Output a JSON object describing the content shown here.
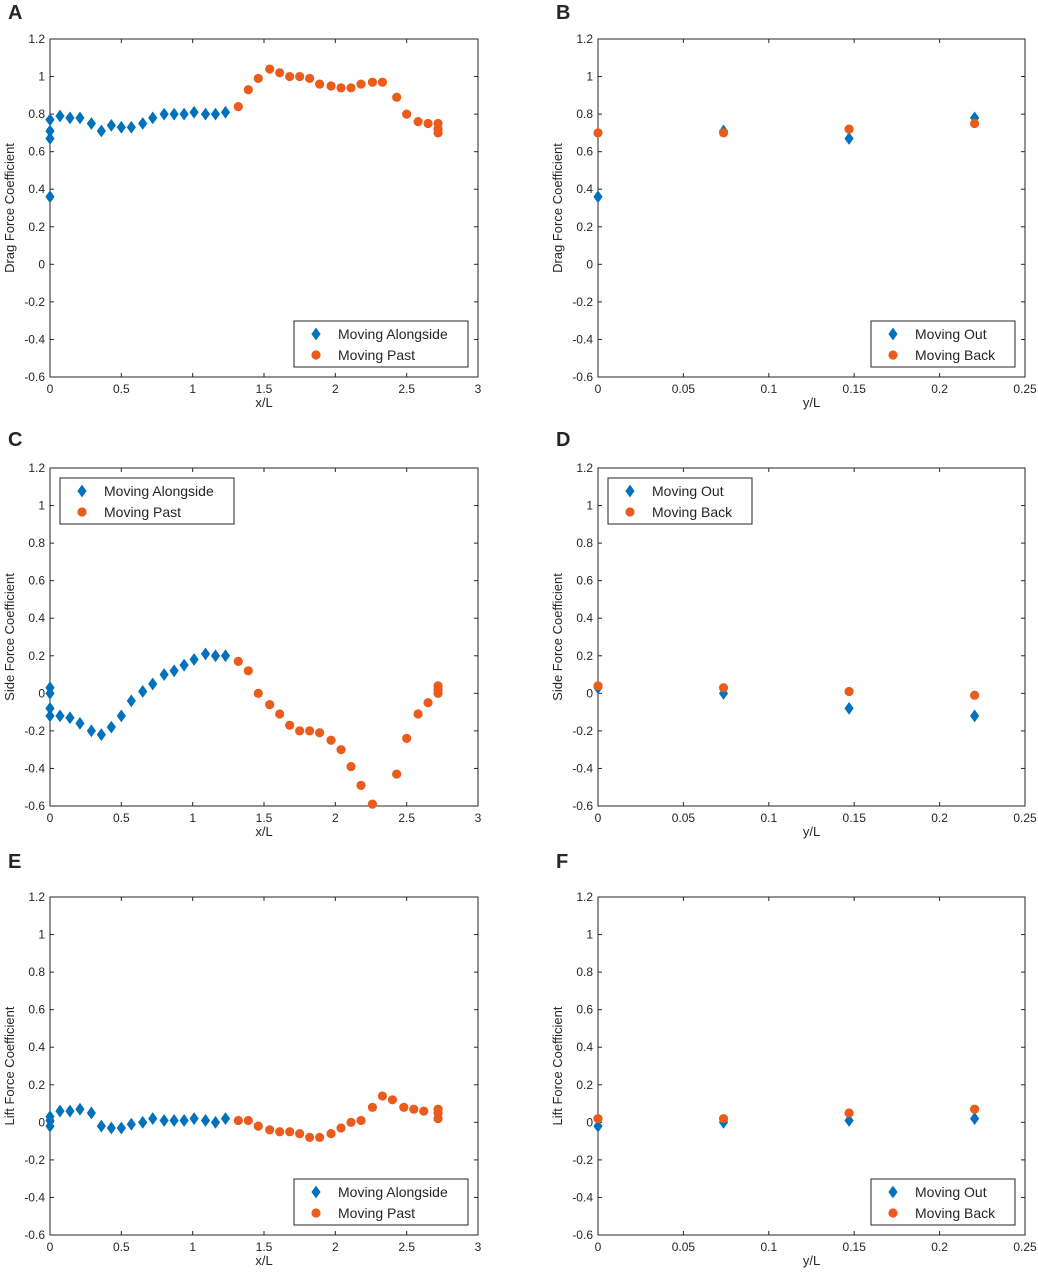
{
  "colors": {
    "series_a": "#0072BD",
    "series_b": "#EA5B1C",
    "axis": "#262626"
  },
  "chart_data": [
    {
      "panel": "A",
      "type": "scatter",
      "xlabel": "x/L",
      "ylabel": "Drag Force Coefficient",
      "xlim": [
        0,
        3
      ],
      "ylim": [
        -0.6,
        1.2
      ],
      "xticks": [
        0,
        0.5,
        1,
        1.5,
        2,
        2.5,
        3
      ],
      "xtick_labels": [
        "0",
        "0.5",
        "1",
        "1.5",
        "2",
        "2.5",
        "3"
      ],
      "yticks": [
        -0.6,
        -0.4,
        -0.2,
        0,
        0.2,
        0.4,
        0.6,
        0.8,
        1,
        1.2
      ],
      "ytick_labels": [
        "-0.6",
        "-0.4",
        "-0.2",
        "0",
        "0.2",
        "0.4",
        "0.6",
        "0.8",
        "1",
        "1.2"
      ],
      "legend": "bottom-right",
      "series": [
        {
          "name": "Moving Alongside",
          "marker": "diamond",
          "x": [
            0,
            0,
            0,
            0,
            0.07,
            0.14,
            0.21,
            0.29,
            0.36,
            0.43,
            0.5,
            0.57,
            0.65,
            0.72,
            0.8,
            0.87,
            0.94,
            1.01,
            1.09,
            1.16,
            1.23
          ],
          "y": [
            0.36,
            0.67,
            0.71,
            0.77,
            0.79,
            0.78,
            0.78,
            0.75,
            0.71,
            0.74,
            0.73,
            0.73,
            0.75,
            0.78,
            0.8,
            0.8,
            0.8,
            0.81,
            0.8,
            0.8,
            0.81
          ]
        },
        {
          "name": "Moving Past",
          "marker": "circle",
          "x": [
            1.32,
            1.39,
            1.46,
            1.54,
            1.61,
            1.68,
            1.75,
            1.82,
            1.89,
            1.97,
            2.04,
            2.11,
            2.18,
            2.26,
            2.33,
            2.43,
            2.5,
            2.58,
            2.65,
            2.72,
            2.72,
            2.72
          ],
          "y": [
            0.84,
            0.93,
            0.99,
            1.04,
            1.02,
            1.0,
            1.0,
            0.99,
            0.96,
            0.95,
            0.94,
            0.94,
            0.96,
            0.97,
            0.97,
            0.89,
            0.8,
            0.76,
            0.75,
            0.7,
            0.72,
            0.75
          ]
        }
      ]
    },
    {
      "panel": "B",
      "type": "scatter",
      "xlabel": "y/L",
      "ylabel": "Drag Force Coefficient",
      "xlim": [
        0,
        0.25
      ],
      "ylim": [
        -0.6,
        1.2
      ],
      "xticks": [
        0,
        0.05,
        0.1,
        0.15,
        0.2,
        0.25
      ],
      "xtick_labels": [
        "0",
        "0.05",
        "0.1",
        "0.15",
        "0.2",
        "0.25"
      ],
      "yticks": [
        -0.6,
        -0.4,
        -0.2,
        0,
        0.2,
        0.4,
        0.6,
        0.8,
        1,
        1.2
      ],
      "ytick_labels": [
        "-0.6",
        "-0.4",
        "-0.2",
        "0",
        "0.2",
        "0.4",
        "0.6",
        "0.8",
        "1",
        "1.2"
      ],
      "legend": "bottom-right",
      "series": [
        {
          "name": "Moving Out",
          "marker": "diamond",
          "x": [
            0,
            0.0735,
            0.147,
            0.2205
          ],
          "y": [
            0.36,
            0.71,
            0.67,
            0.78
          ]
        },
        {
          "name": "Moving Back",
          "marker": "circle",
          "x": [
            0,
            0.0735,
            0.147,
            0.2205
          ],
          "y": [
            0.7,
            0.7,
            0.72,
            0.75
          ]
        }
      ]
    },
    {
      "panel": "C",
      "type": "scatter",
      "xlabel": "x/L",
      "ylabel": "Side Force Coefficient",
      "xlim": [
        0,
        3
      ],
      "ylim": [
        -0.6,
        1.2
      ],
      "xticks": [
        0,
        0.5,
        1,
        1.5,
        2,
        2.5,
        3
      ],
      "xtick_labels": [
        "0",
        "0.5",
        "1",
        "1.5",
        "2",
        "2.5",
        "3"
      ],
      "yticks": [
        -0.6,
        -0.4,
        -0.2,
        0,
        0.2,
        0.4,
        0.6,
        0.8,
        1,
        1.2
      ],
      "ytick_labels": [
        "-0.6",
        "-0.4",
        "-0.2",
        "0",
        "0.2",
        "0.4",
        "0.6",
        "0.8",
        "1",
        "1.2"
      ],
      "legend": "top-left",
      "series": [
        {
          "name": "Moving Alongside",
          "marker": "diamond",
          "x": [
            0,
            0,
            0,
            0,
            0.07,
            0.14,
            0.21,
            0.29,
            0.36,
            0.43,
            0.5,
            0.57,
            0.65,
            0.72,
            0.8,
            0.87,
            0.94,
            1.01,
            1.09,
            1.16,
            1.23
          ],
          "y": [
            -0.12,
            -0.08,
            0.0,
            0.03,
            -0.12,
            -0.13,
            -0.16,
            -0.2,
            -0.22,
            -0.18,
            -0.12,
            -0.04,
            0.01,
            0.05,
            0.1,
            0.12,
            0.15,
            0.18,
            0.21,
            0.2,
            0.2
          ]
        },
        {
          "name": "Moving Past",
          "marker": "circle",
          "x": [
            1.32,
            1.39,
            1.46,
            1.54,
            1.61,
            1.68,
            1.75,
            1.82,
            1.89,
            1.97,
            2.04,
            2.11,
            2.18,
            2.26,
            2.43,
            2.5,
            2.58,
            2.65,
            2.72,
            2.72,
            2.72
          ],
          "y": [
            0.17,
            0.12,
            0.0,
            -0.06,
            -0.11,
            -0.17,
            -0.2,
            -0.2,
            -0.21,
            -0.25,
            -0.3,
            -0.39,
            -0.49,
            -0.59,
            -0.43,
            -0.24,
            -0.11,
            -0.05,
            0.0,
            0.02,
            0.04
          ]
        }
      ]
    },
    {
      "panel": "D",
      "type": "scatter",
      "xlabel": "y/L",
      "ylabel": "Side Force Coefficient",
      "xlim": [
        0,
        0.25
      ],
      "ylim": [
        -0.6,
        1.2
      ],
      "xticks": [
        0,
        0.05,
        0.1,
        0.15,
        0.2,
        0.25
      ],
      "xtick_labels": [
        "0",
        "0.05",
        "0.1",
        "0.15",
        "0.2",
        "0.25"
      ],
      "yticks": [
        -0.6,
        -0.4,
        -0.2,
        0,
        0.2,
        0.4,
        0.6,
        0.8,
        1,
        1.2
      ],
      "ytick_labels": [
        "-0.6",
        "-0.4",
        "-0.2",
        "0",
        "0.2",
        "0.4",
        "0.6",
        "0.8",
        "1",
        "1.2"
      ],
      "legend": "top-left",
      "series": [
        {
          "name": "Moving Out",
          "marker": "diamond",
          "x": [
            0,
            0.0735,
            0.147,
            0.2205
          ],
          "y": [
            0.03,
            0.0,
            -0.08,
            -0.12
          ]
        },
        {
          "name": "Moving Back",
          "marker": "circle",
          "x": [
            0,
            0.0735,
            0.147,
            0.2205
          ],
          "y": [
            0.04,
            0.03,
            0.01,
            -0.01
          ]
        }
      ]
    },
    {
      "panel": "E",
      "type": "scatter",
      "xlabel": "x/L",
      "ylabel": "Lift Force Coefficient",
      "xlim": [
        0,
        3
      ],
      "ylim": [
        -0.6,
        1.2
      ],
      "xticks": [
        0,
        0.5,
        1,
        1.5,
        2,
        2.5,
        3
      ],
      "xtick_labels": [
        "0",
        "0.5",
        "1",
        "1.5",
        "2",
        "2.5",
        "3"
      ],
      "yticks": [
        -0.6,
        -0.4,
        -0.2,
        0,
        0.2,
        0.4,
        0.6,
        0.8,
        1,
        1.2
      ],
      "ytick_labels": [
        "-0.6",
        "-0.4",
        "-0.2",
        "0",
        "0.2",
        "0.4",
        "0.6",
        "0.8",
        "1",
        "1.2"
      ],
      "legend": "bottom-right",
      "series": [
        {
          "name": "Moving Alongside",
          "marker": "diamond",
          "x": [
            0,
            0,
            0,
            0.07,
            0.14,
            0.21,
            0.29,
            0.36,
            0.43,
            0.5,
            0.57,
            0.65,
            0.72,
            0.8,
            0.87,
            0.94,
            1.01,
            1.09,
            1.16,
            1.23
          ],
          "y": [
            -0.02,
            0.01,
            0.03,
            0.06,
            0.06,
            0.07,
            0.05,
            -0.02,
            -0.03,
            -0.03,
            -0.01,
            0.0,
            0.02,
            0.01,
            0.01,
            0.01,
            0.02,
            0.01,
            0.0,
            0.02
          ]
        },
        {
          "name": "Moving Past",
          "marker": "circle",
          "x": [
            1.32,
            1.39,
            1.46,
            1.54,
            1.61,
            1.68,
            1.75,
            1.82,
            1.89,
            1.97,
            2.04,
            2.11,
            2.18,
            2.26,
            2.33,
            2.4,
            2.48,
            2.55,
            2.62,
            2.72,
            2.72,
            2.72
          ],
          "y": [
            0.01,
            0.01,
            -0.02,
            -0.04,
            -0.05,
            -0.05,
            -0.06,
            -0.08,
            -0.08,
            -0.06,
            -0.03,
            0.0,
            0.01,
            0.08,
            0.14,
            0.12,
            0.08,
            0.07,
            0.06,
            0.02,
            0.05,
            0.07
          ]
        }
      ]
    },
    {
      "panel": "F",
      "type": "scatter",
      "xlabel": "y/L",
      "ylabel": "Lift Force Coefficient",
      "xlim": [
        0,
        0.25
      ],
      "ylim": [
        -0.6,
        1.2
      ],
      "xticks": [
        0,
        0.05,
        0.1,
        0.15,
        0.2,
        0.25
      ],
      "xtick_labels": [
        "0",
        "0.05",
        "0.1",
        "0.15",
        "0.2",
        "0.25"
      ],
      "yticks": [
        -0.6,
        -0.4,
        -0.2,
        0,
        0.2,
        0.4,
        0.6,
        0.8,
        1,
        1.2
      ],
      "ytick_labels": [
        "-0.6",
        "-0.4",
        "-0.2",
        "0",
        "0.2",
        "0.4",
        "0.6",
        "0.8",
        "1",
        "1.2"
      ],
      "legend": "bottom-right",
      "series": [
        {
          "name": "Moving Out",
          "marker": "diamond",
          "x": [
            0,
            0.0735,
            0.147,
            0.2205
          ],
          "y": [
            -0.02,
            0.0,
            0.01,
            0.02
          ]
        },
        {
          "name": "Moving Back",
          "marker": "circle",
          "x": [
            0,
            0.0735,
            0.147,
            0.2205
          ],
          "y": [
            0.02,
            0.02,
            0.05,
            0.07
          ]
        }
      ]
    }
  ]
}
